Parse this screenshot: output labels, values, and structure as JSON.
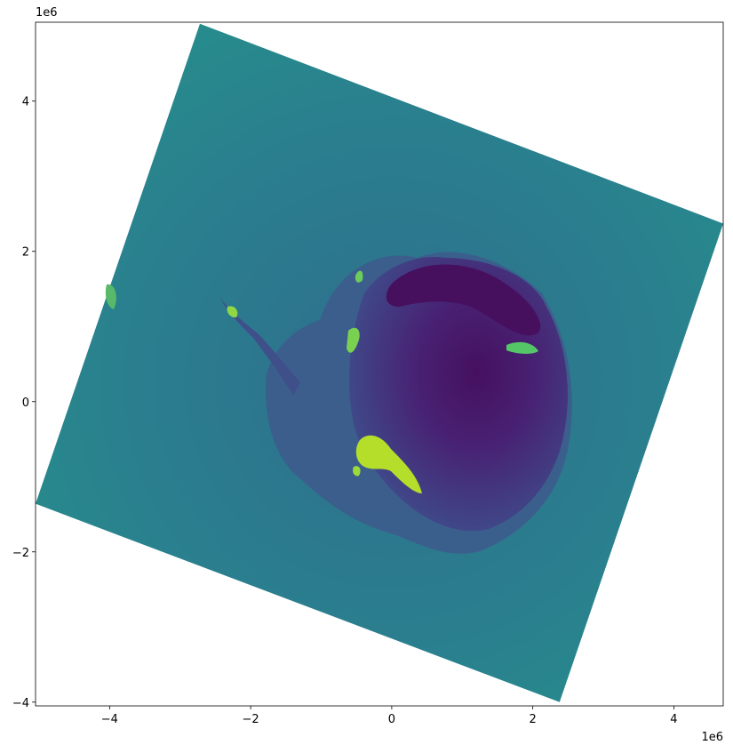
{
  "chart_data": {
    "type": "heatmap",
    "title": "",
    "xlabel": "",
    "ylabel": "",
    "x_offset_text": "1e6",
    "y_offset_text": "1e6",
    "xlim": [
      -5.05,
      4.7
    ],
    "ylim": [
      -4.05,
      5.05
    ],
    "x_ticks": [
      -4,
      -2,
      0,
      2,
      4
    ],
    "x_tick_labels": [
      "−4",
      "−2",
      "0",
      "2",
      "4"
    ],
    "y_ticks": [
      -4,
      -2,
      0,
      2,
      4
    ],
    "y_tick_labels": [
      "−4",
      "−2",
      "0",
      "2",
      "4"
    ],
    "grid": false,
    "colormap": "viridis",
    "raster_footprint_corners": [
      [
        -2.72,
        5.03
      ],
      [
        4.7,
        2.37
      ],
      [
        2.38,
        -4.0
      ],
      [
        -5.05,
        -1.36
      ]
    ],
    "colors": {
      "ocean_mid": "#2a7f8e",
      "ocean_margin": "#23968b",
      "ice_shelf": "#3b5b8c",
      "ice_sheet_low": "#414487",
      "ice_sheet_high": "#481f70",
      "high_plateau": "#46105f",
      "exposed_rock": "#9dd93b",
      "exposed_rock_bright": "#bade28"
    }
  }
}
